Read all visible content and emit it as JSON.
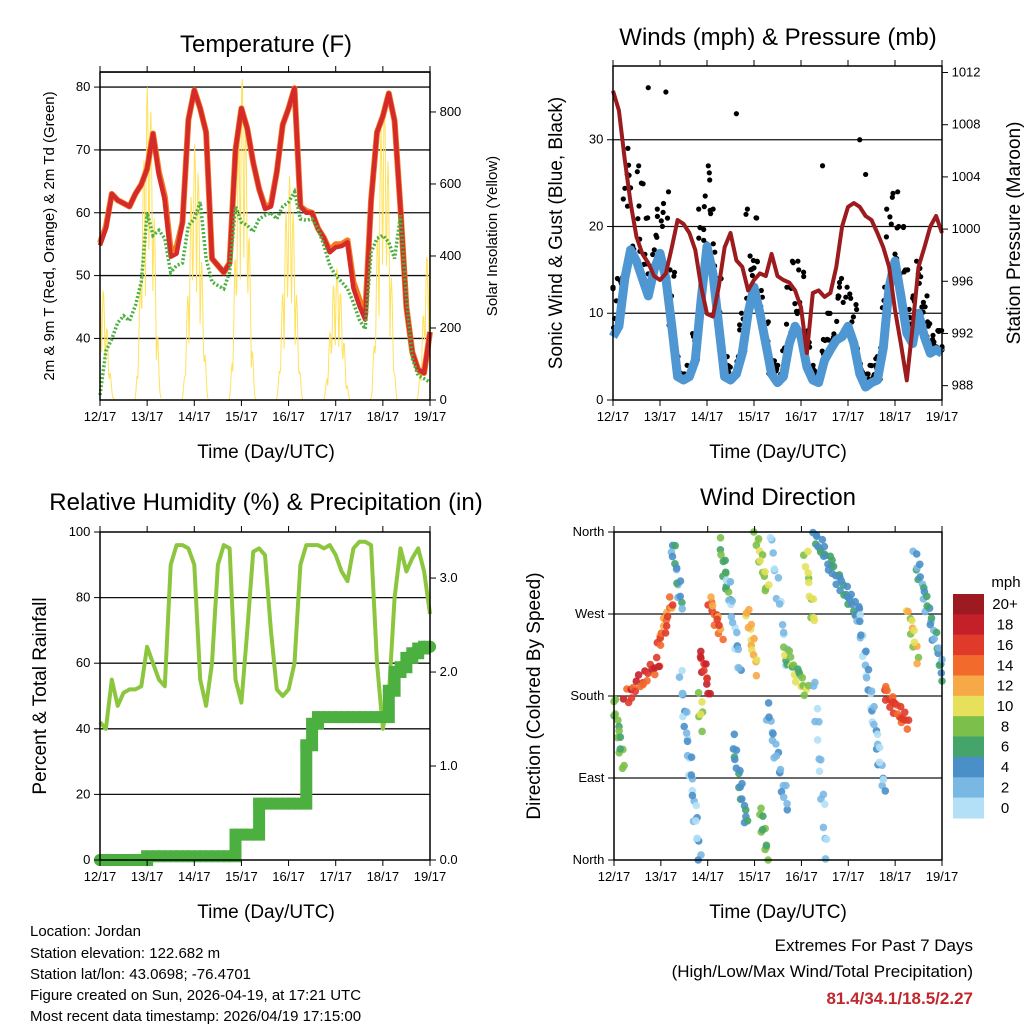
{
  "footer": {
    "location": "Location: Jordan",
    "elevation": "Station elevation: 122.682 m",
    "latlon": "Station lat/lon: 43.0698; -76.4701",
    "created": "Figure created on Sun, 2026-04-19, at 17:21 UTC",
    "recent": "Most recent data timestamp: 2026/04/19 17:15:00"
  },
  "extremes": {
    "title": "Extremes For Past 7 Days",
    "subtitle": "(High/Low/Max Wind/Total Precipitation)",
    "values": "81.4/34.1/18.5/2.27",
    "color": "#c1272d"
  },
  "time_axis": {
    "xlabel": "Time (Day/UTC)",
    "tick_labels": [
      "12/17",
      "13/17",
      "14/17",
      "15/17",
      "16/17",
      "17/17",
      "18/17",
      "19/17"
    ]
  },
  "chart_data": [
    {
      "type": "line",
      "title": "Temperature (F)",
      "xlabel": "Time (Day/UTC)",
      "ylabel": "2m & 9m T (Red, Orange) & 2m Td (Green)",
      "y2label": "Solar Insolation (Yellow)",
      "x_step_hours": 3,
      "ylim": [
        30.2,
        82.4
      ],
      "y2lim": [
        0,
        911
      ],
      "yticks": [
        40,
        50,
        60,
        70,
        80
      ],
      "y2ticks": [
        0,
        200,
        400,
        600,
        800
      ],
      "series": [
        {
          "name": "9m T",
          "color": "#f47a20",
          "values": [
            55.2,
            57.8,
            63,
            62,
            61.5,
            61,
            63,
            64.5,
            67,
            72.6,
            66.5,
            62.6,
            54,
            54.5,
            58.5,
            74.8,
            79.5,
            76.6,
            72.8,
            52.7,
            51.6,
            50.5,
            52,
            70,
            76.6,
            73.4,
            68,
            63.8,
            61,
            61.3,
            66.5,
            74,
            76.6,
            79.8,
            61,
            60.3,
            60,
            57.5,
            56,
            54,
            55,
            55,
            55.6,
            49,
            46.2,
            43.8,
            62,
            72.8,
            75.4,
            79,
            74.6,
            60.6,
            45,
            37.8,
            35,
            34.5,
            41
          ]
        },
        {
          "name": "2m T",
          "color": "#d42a2a",
          "values": [
            54.8,
            57.5,
            63,
            62,
            61.5,
            61,
            63,
            64.5,
            67,
            72.6,
            66,
            62,
            53,
            53.5,
            58.5,
            74.8,
            79.5,
            76.6,
            72.8,
            52.7,
            51.6,
            50.5,
            52,
            70,
            76.6,
            73.4,
            68,
            63.8,
            60.6,
            61,
            66.5,
            74,
            76.6,
            79.8,
            61,
            60,
            60,
            57.5,
            56,
            53.7,
            54.5,
            54.7,
            55.3,
            48,
            45.2,
            43,
            62,
            72.8,
            75.4,
            79,
            74.6,
            60.6,
            45,
            37.8,
            35,
            34.5,
            41
          ]
        },
        {
          "name": "2m Td",
          "color": "#4cb040",
          "values": [
            31,
            38,
            39.9,
            42.5,
            43.6,
            42.8,
            45.2,
            49,
            60,
            56.4,
            57.2,
            55.9,
            50.5,
            51.6,
            52,
            58,
            59,
            61.7,
            52.7,
            49,
            48.4,
            47.9,
            50.5,
            61,
            58.5,
            58,
            57,
            59,
            59.6,
            60,
            59,
            61,
            61.7,
            63.3,
            59,
            58.8,
            59,
            57.5,
            54.8,
            51.6,
            50,
            49,
            47.9,
            45.7,
            43,
            41.5,
            53.7,
            55.9,
            56.4,
            55.3,
            52.7,
            59.6,
            46.3,
            36.8,
            34.1,
            33.6,
            33
          ]
        }
      ],
      "insolation": {
        "name": "Solar Insolation",
        "color": "#ffe15a",
        "daily_peaks": [
          {
            "hour": 0.5,
            "value": 332
          },
          {
            "hour": 24.5,
            "value": 886
          },
          {
            "hour": 48.5,
            "value": 715
          },
          {
            "hour": 72.5,
            "value": 909
          },
          {
            "hour": 96.5,
            "value": 622
          },
          {
            "hour": 120.5,
            "value": 373
          },
          {
            "hour": 144.5,
            "value": 844
          },
          {
            "hour": 168,
            "value": 466
          }
        ]
      }
    },
    {
      "type": "line",
      "title": "Winds (mph) & Pressure (mb)",
      "xlabel": "Time (Day/UTC)",
      "ylabel": "Sonic Wind & Gust (Blue, Black)",
      "y2label": "Station Pressure (Maroon)",
      "x_step_hours": 3,
      "ylim": [
        0,
        38.5
      ],
      "y2lim": [
        986.9,
        1012.5
      ],
      "yticks": [
        0,
        10,
        20,
        30
      ],
      "y2ticks": [
        988,
        992,
        996,
        1000,
        1004,
        1008,
        1012
      ],
      "series": [
        {
          "name": "Sonic Wind",
          "color": "#4f97d2",
          "values": [
            7.3,
            8.5,
            14,
            17.3,
            16,
            14,
            12,
            15,
            16.9,
            14,
            8.5,
            2.7,
            2.3,
            2.7,
            4.6,
            11.5,
            17.7,
            14.6,
            8.5,
            2.7,
            2.3,
            3,
            5.4,
            10,
            13,
            10,
            6.5,
            3,
            2,
            2.7,
            6.5,
            8.5,
            7.3,
            3.8,
            2.3,
            2,
            4.6,
            5.8,
            6.9,
            7.3,
            8.5,
            6.5,
            3,
            1.5,
            2,
            2.3,
            6,
            13,
            16,
            12,
            7.7,
            6.5,
            10,
            7.3,
            5.4,
            5.8,
            5.4
          ]
        },
        {
          "name": "Gust",
          "color": "#000000",
          "values": [
            13,
            14,
            26,
            29,
            27,
            25,
            21,
            19,
            22,
            24,
            15,
            5,
            3,
            4,
            8,
            22,
            27,
            22,
            14,
            5,
            4,
            5,
            10,
            22,
            21,
            16,
            9,
            5,
            4,
            6,
            13,
            16,
            15,
            8,
            4,
            3,
            7,
            10,
            12,
            14,
            13,
            11,
            6,
            3,
            4,
            5,
            13,
            22,
            24,
            20,
            15,
            12,
            16,
            12,
            9,
            8,
            8
          ],
          "outliers": [
            [
              18,
              36
            ],
            [
              27,
              35.5
            ],
            [
              63,
              33
            ],
            [
              107,
              27
            ],
            [
              126,
              30
            ],
            [
              129,
              26
            ]
          ]
        },
        {
          "name": "Station Pressure",
          "color": "#9b1b1e",
          "axis": "right",
          "values": [
            1010.6,
            1009.1,
            1005.3,
            1002,
            999.4,
            998.1,
            997.4,
            996.4,
            996.1,
            996.6,
            998.6,
            1000.7,
            1000.4,
            999.7,
            998.4,
            995.6,
            993.5,
            993.3,
            995.6,
            998.6,
            999.7,
            997.6,
            997.1,
            995.3,
            996.1,
            996.6,
            996.4,
            998.1,
            996.4,
            996.1,
            995.9,
            995.3,
            994,
            990.5,
            995.1,
            995.3,
            994.8,
            995.1,
            997.1,
            1000.2,
            1001.7,
            1002,
            1001.7,
            1001,
            1000.7,
            999.7,
            998.6,
            997.1,
            993.8,
            991.2,
            988.4,
            992.5,
            997.1,
            998.6,
            1000.2,
            1001,
            999.7
          ]
        }
      ]
    },
    {
      "type": "line",
      "title": "Relative Humidity (%) & Precipitation (in)",
      "xlabel": "Time (Day/UTC)",
      "ylabel": "Percent & Total Rainfall",
      "x_step_hours": 3,
      "ylim": [
        0,
        100
      ],
      "y2lim": [
        0,
        3.49
      ],
      "yticks": [
        0,
        20,
        40,
        60,
        80,
        100
      ],
      "y2ticks": [
        "0.0",
        "1.0",
        "2.0",
        "3.0"
      ],
      "series": [
        {
          "name": "Relative Humidity",
          "color": "#8cc63f",
          "values": [
            42,
            40,
            55,
            47,
            51,
            52,
            52,
            53,
            65,
            60,
            55,
            53,
            90,
            96,
            96,
            95,
            90,
            55,
            47,
            60,
            90,
            96,
            95,
            55,
            48,
            70,
            94,
            95,
            93,
            70,
            52,
            50,
            52,
            60,
            90,
            96,
            96,
            96,
            95,
            96,
            93,
            88,
            85,
            95,
            97,
            97,
            96,
            60,
            40,
            50,
            80,
            95,
            88,
            92,
            95,
            88,
            75
          ]
        },
        {
          "name": "Total Precipitation",
          "color": "#4cb040",
          "axis": "right",
          "values": [
            0,
            0,
            0,
            0,
            0,
            0,
            0,
            0,
            0.04,
            0.04,
            0.04,
            0.04,
            0.04,
            0.04,
            0.04,
            0.04,
            0.04,
            0.04,
            0.04,
            0.04,
            0.04,
            0.04,
            0.04,
            0.27,
            0.27,
            0.27,
            0.27,
            0.6,
            0.6,
            0.6,
            0.6,
            0.6,
            0.6,
            0.6,
            0.6,
            1.22,
            1.45,
            1.52,
            1.52,
            1.52,
            1.52,
            1.52,
            1.52,
            1.52,
            1.52,
            1.52,
            1.52,
            1.52,
            1.52,
            1.8,
            2.0,
            2.05,
            2.15,
            2.2,
            2.25,
            2.27,
            2.27
          ]
        }
      ]
    },
    {
      "type": "scatter",
      "title": "Wind Direction",
      "xlabel": "Time (Day/UTC)",
      "ylabel": "Direction (Colored By Speed)",
      "ylim": [
        0,
        360
      ],
      "yticks": [
        {
          "deg": 0,
          "label": "North"
        },
        {
          "deg": 90,
          "label": "East"
        },
        {
          "deg": 180,
          "label": "South"
        },
        {
          "deg": 270,
          "label": "West"
        },
        {
          "deg": 360,
          "label": "North"
        }
      ],
      "segments_fields": [
        "hour_start",
        "hour_end",
        "deg_start",
        "deg_end",
        "speed_mph",
        "count"
      ],
      "segments": [
        [
          0,
          4.8,
          174,
          104,
          7,
          14
        ],
        [
          5.7,
          23.7,
          178,
          218,
          16,
          22
        ],
        [
          22.8,
          29.7,
          236,
          284,
          14,
          16
        ],
        [
          29.7,
          34.8,
          349,
          276,
          4,
          14
        ],
        [
          34,
          44,
          203,
          2,
          2,
          30
        ],
        [
          44,
          49,
          229,
          185,
          17,
          12
        ],
        [
          44,
          45,
          177,
          148,
          9,
          6
        ],
        [
          49,
          55,
          287,
          247,
          14,
          14
        ],
        [
          54.5,
          58.8,
          346,
          287,
          7,
          12
        ],
        [
          58,
          64.8,
          313,
          203,
          2,
          16
        ],
        [
          61,
          68,
          130,
          38,
          4,
          18
        ],
        [
          68,
          73,
          276,
          210,
          12,
          14
        ],
        [
          72.5,
          78.5,
          360,
          294,
          8,
          14
        ],
        [
          75,
          78.5,
          57,
          2,
          7,
          10
        ],
        [
          78.5,
          88.8,
          166,
          57,
          3,
          20
        ],
        [
          80,
          88.8,
          357,
          221,
          1,
          14
        ],
        [
          87,
          99,
          229,
          185,
          8,
          20
        ],
        [
          98,
          102.5,
          338,
          258,
          9,
          12
        ],
        [
          102.5,
          124.8,
          357,
          270,
          5,
          40
        ],
        [
          102.5,
          109,
          196,
          2,
          1,
          16
        ],
        [
          124.8,
          138.5,
          276,
          75,
          2,
          34
        ],
        [
          138.5,
          150.5,
          185,
          148,
          15,
          22
        ],
        [
          150.5,
          155.7,
          276,
          221,
          10,
          12
        ],
        [
          154,
          169,
          335,
          203,
          4,
          30
        ]
      ],
      "legend": {
        "title": "mph",
        "entries": [
          {
            "label": "20+",
            "color": "#9c1a20"
          },
          {
            "label": "18",
            "color": "#c4202a"
          },
          {
            "label": "16",
            "color": "#e03a2a"
          },
          {
            "label": "14",
            "color": "#f26a2c"
          },
          {
            "label": "12",
            "color": "#f7a847"
          },
          {
            "label": "10",
            "color": "#e6e05a"
          },
          {
            "label": "8",
            "color": "#7cc04b"
          },
          {
            "label": "6",
            "color": "#45a46a"
          },
          {
            "label": "4",
            "color": "#4a8fc8"
          },
          {
            "label": "2",
            "color": "#7ab8e4"
          },
          {
            "label": "0",
            "color": "#b3e0f7"
          }
        ]
      }
    }
  ]
}
